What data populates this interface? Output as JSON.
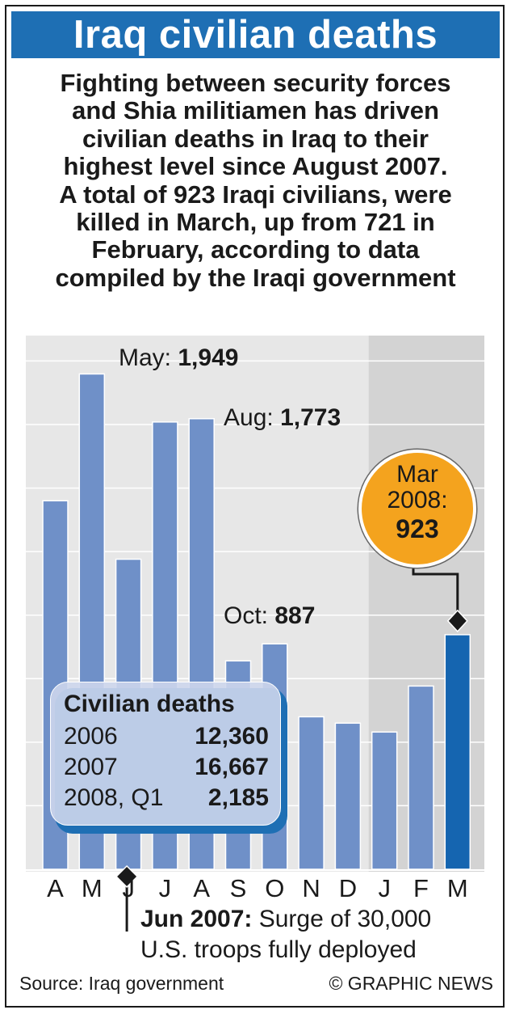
{
  "title": "Iraq civilian deaths",
  "description": [
    "Fighting between security forces",
    "and Shia militiamen has driven",
    "civilian deaths in Iraq to their",
    "highest level since August 2007.",
    "A total of 923 Iraqi civilians, were",
    "killed in March, up from 721 in",
    "February, according to data",
    "compiled by the Iraqi government"
  ],
  "chart_data": {
    "type": "bar",
    "categories": [
      "A",
      "M",
      "J",
      "J",
      "A",
      "S",
      "O",
      "N",
      "D",
      "J",
      "F",
      "M"
    ],
    "values": [
      1450,
      1949,
      1220,
      1760,
      1773,
      820,
      887,
      600,
      575,
      540,
      721,
      923
    ],
    "ylim": [
      0,
      2100
    ],
    "grid": true,
    "highlight_index": 11,
    "colors": {
      "bar": "#6f90c8",
      "highlight": "#1565b0",
      "plot_bg": "#e7e7e7",
      "shade": "#d3d3d3"
    }
  },
  "callouts": {
    "may": {
      "label": "May: ",
      "value": "1,949"
    },
    "aug": {
      "label": "Aug: ",
      "value": "1,773"
    },
    "oct": {
      "label": "Oct: ",
      "value": "887"
    },
    "mar": {
      "line1": "Mar",
      "line2": "2008:",
      "value": "923"
    }
  },
  "stats": {
    "heading": "Civilian deaths",
    "rows": [
      {
        "label": "2006",
        "value": "12,360"
      },
      {
        "label": "2007",
        "value": "16,667"
      },
      {
        "label": "2008, Q1",
        "value": "2,185"
      }
    ]
  },
  "annotation": {
    "bold": "Jun 2007:",
    "text": " Surge of 30,000",
    "line2": "U.S. troops fully deployed"
  },
  "footer": {
    "source": "Source: Iraq government",
    "credit": "© GRAPHIC NEWS"
  }
}
